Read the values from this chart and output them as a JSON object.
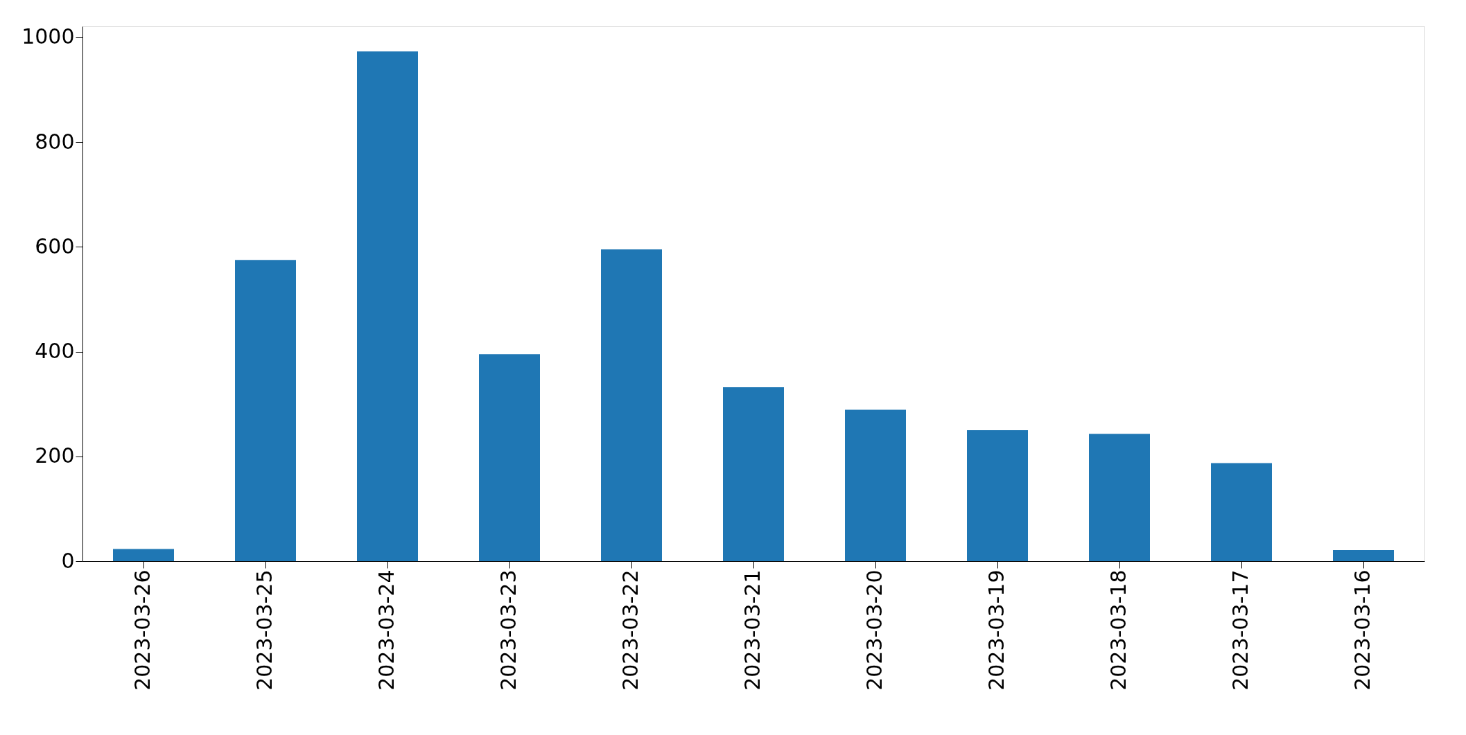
{
  "chart_data": {
    "type": "bar",
    "categories": [
      "2023-03-26",
      "2023-03-25",
      "2023-03-24",
      "2023-03-23",
      "2023-03-22",
      "2023-03-21",
      "2023-03-20",
      "2023-03-19",
      "2023-03-18",
      "2023-03-17",
      "2023-03-16"
    ],
    "values": [
      23,
      575,
      973,
      395,
      595,
      332,
      289,
      250,
      243,
      187,
      21
    ],
    "color": "#1f77b4",
    "ylim": [
      0,
      1021
    ],
    "yticks": [
      0,
      200,
      400,
      600,
      800,
      1000
    ],
    "grid": false
  }
}
